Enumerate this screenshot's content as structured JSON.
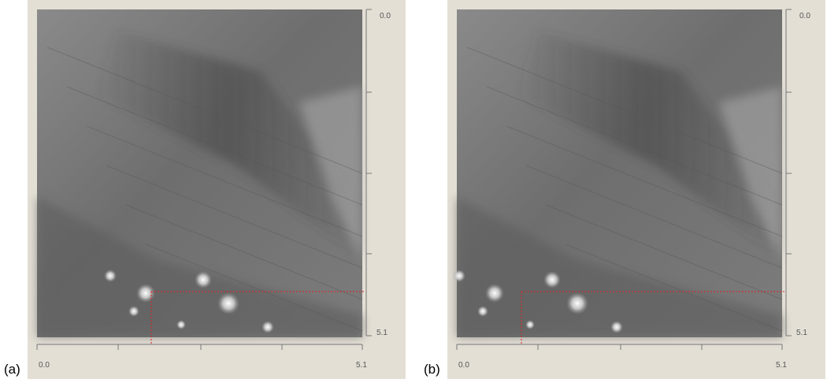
{
  "panels": [
    {
      "label": "(a)",
      "x_axis": {
        "start": "0.0",
        "end": "5.1"
      },
      "y_axis": {
        "start": "0.0",
        "end": "5.1"
      }
    },
    {
      "label": "(b)",
      "x_axis": {
        "start": "0.0",
        "end": "5.1"
      },
      "y_axis": {
        "start": "0.0",
        "end": "5.1"
      }
    }
  ]
}
